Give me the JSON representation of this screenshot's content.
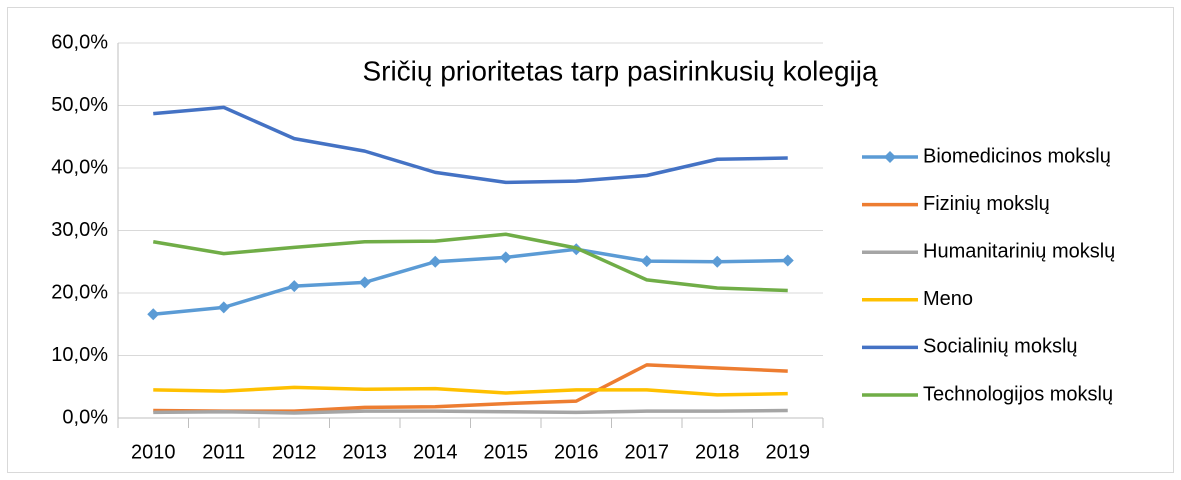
{
  "chart_data": {
    "type": "line",
    "title": "Sričių prioritetas tarp pasirinkusių kolegiją",
    "categories": [
      "2010",
      "2011",
      "2012",
      "2013",
      "2014",
      "2015",
      "2016",
      "2017",
      "2018",
      "2019"
    ],
    "series": [
      {
        "name": "Biomedicinos mokslų",
        "color": "#5b9bd5",
        "marker": "diamond",
        "values": [
          16.6,
          17.7,
          21.1,
          21.7,
          25.0,
          25.7,
          27.0,
          25.1,
          25.0,
          25.2
        ]
      },
      {
        "name": "Fizinių mokslų",
        "color": "#ed7d31",
        "values": [
          1.2,
          1.1,
          1.1,
          1.7,
          1.8,
          2.3,
          2.7,
          8.5,
          8.0,
          7.5
        ]
      },
      {
        "name": "Humanitarinių mokslų",
        "color": "#a5a5a5",
        "values": [
          0.9,
          1.0,
          0.8,
          1.1,
          1.1,
          1.0,
          0.9,
          1.1,
          1.1,
          1.2
        ]
      },
      {
        "name": "Meno",
        "color": "#ffc000",
        "values": [
          4.5,
          4.3,
          4.9,
          4.6,
          4.7,
          4.0,
          4.5,
          4.5,
          3.7,
          3.9
        ]
      },
      {
        "name": "Socialinių mokslų",
        "color": "#4472c4",
        "values": [
          48.7,
          49.7,
          44.7,
          42.7,
          39.3,
          37.7,
          37.9,
          38.8,
          41.4,
          41.6
        ]
      },
      {
        "name": "Technologijos mokslų",
        "color": "#70ad47",
        "values": [
          28.2,
          26.3,
          27.3,
          28.2,
          28.3,
          29.4,
          27.2,
          22.1,
          20.8,
          20.4
        ]
      }
    ],
    "ylim": [
      0,
      60
    ],
    "yticks": [
      {
        "value": 0,
        "label": "0,0%"
      },
      {
        "value": 10,
        "label": "10,0%"
      },
      {
        "value": 20,
        "label": "20,0%"
      },
      {
        "value": 30,
        "label": "30,0%"
      },
      {
        "value": 40,
        "label": "40,0%"
      },
      {
        "value": 50,
        "label": "50,0%"
      },
      {
        "value": 60,
        "label": "60,0%"
      }
    ],
    "grid": true,
    "legend": "right"
  }
}
